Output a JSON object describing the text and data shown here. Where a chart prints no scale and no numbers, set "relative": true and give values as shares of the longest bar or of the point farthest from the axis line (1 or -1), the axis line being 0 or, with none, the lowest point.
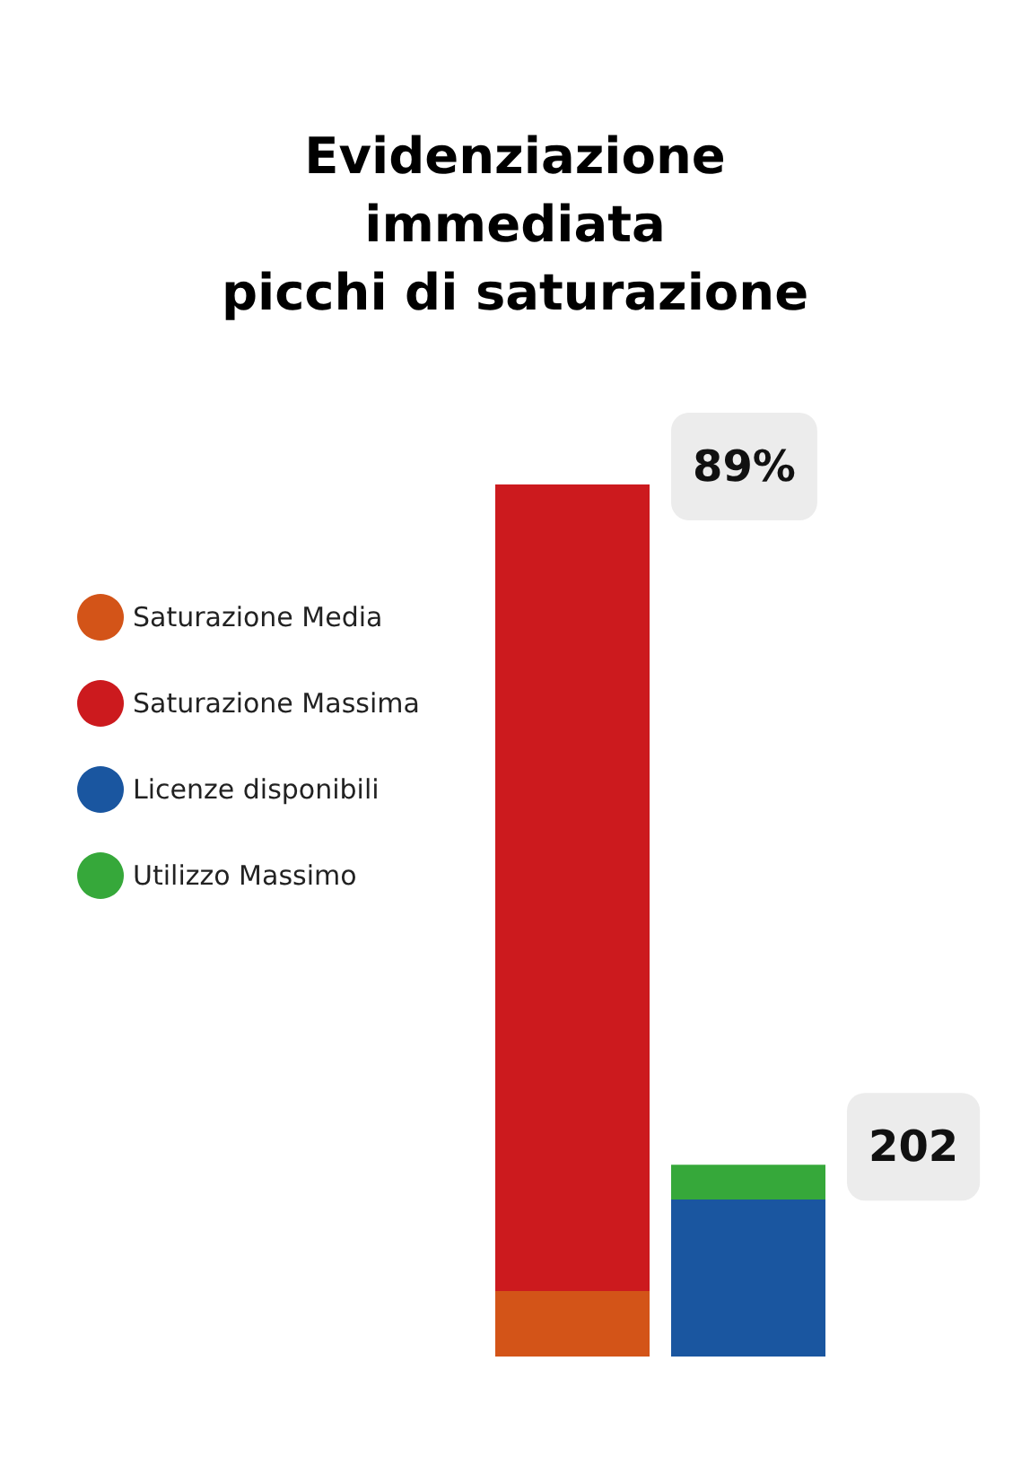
{
  "chart_data": {
    "type": "bar",
    "title": "Evidenziazione\nimmediata\npicchi di saturazione",
    "categories": [
      null,
      null
    ],
    "stacked": true,
    "relative": true,
    "legend": "left",
    "annotations": [
      "89%",
      "202"
    ],
    "series": [
      {
        "name": "Saturazione Media",
        "color": "#d35418",
        "values": [
          0.075,
          null
        ]
      },
      {
        "name": "Saturazione Massima",
        "color": "#cc1a1e",
        "values": [
          0.925,
          null
        ]
      },
      {
        "name": "Licenze disponibili",
        "color": "#1a56a0",
        "values": [
          null,
          0.18
        ]
      },
      {
        "name": "Utilizzo Massimo",
        "color": "#36a83a",
        "values": [
          null,
          0.04
        ]
      }
    ]
  }
}
